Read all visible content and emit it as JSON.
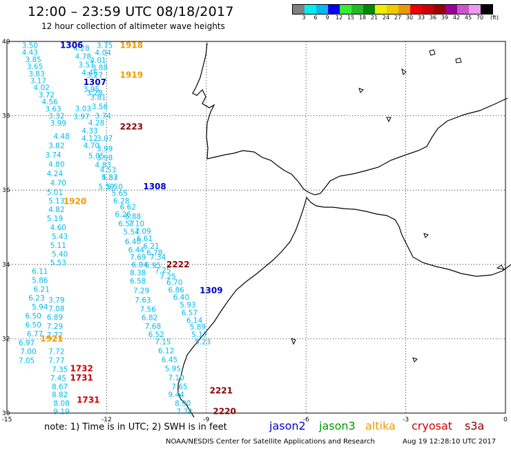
{
  "header": {
    "title": "12:00 – 23:59 UTC 08/18/2017",
    "subtitle": "12 hour collection of altimeter wave heights"
  },
  "colorbar": {
    "colors": [
      "#808080",
      "#00eeee",
      "#00bbee",
      "#0000ee",
      "#33ee33",
      "#22bb22",
      "#008800",
      "#eeee00",
      "#eecc00",
      "#ee9900",
      "#ee0000",
      "#cc0000",
      "#990000",
      "#990099",
      "#cc55cc",
      "#ee99ee",
      "#000000"
    ],
    "labels": [
      "3",
      "6",
      "9",
      "12",
      "15",
      "18",
      "21",
      "24",
      "27",
      "30",
      "33",
      "36",
      "39",
      "42",
      "45",
      "70",
      "(ft)"
    ]
  },
  "map": {
    "lon_range": [
      -15,
      0
    ],
    "lat_range": [
      30,
      40
    ],
    "x_ticks": [
      {
        "value": -15,
        "label": "-15"
      },
      {
        "value": -12,
        "label": "-12"
      },
      {
        "value": -9,
        "label": "-9"
      },
      {
        "value": -6,
        "label": "-6"
      },
      {
        "value": -3,
        "label": "-3"
      },
      {
        "value": 0,
        "label": "0"
      }
    ],
    "y_ticks": [
      {
        "value": 40,
        "label": "40"
      },
      {
        "value": 38,
        "label": "38"
      },
      {
        "value": 36,
        "label": "36"
      },
      {
        "value": 34,
        "label": "34"
      },
      {
        "value": 32,
        "label": "32"
      },
      {
        "value": 30,
        "label": "30"
      }
    ],
    "grid": "dotted",
    "coast_color": "#000000"
  },
  "satellites": [
    {
      "name": "jason2",
      "color": "#0000cc"
    },
    {
      "name": "jason3",
      "color": "#009900"
    },
    {
      "name": "altika",
      "color": "#ee9900"
    },
    {
      "name": "cryosat",
      "color": "#cc0000"
    },
    {
      "name": "s3a",
      "color": "#880000"
    }
  ],
  "chart_data": {
    "type": "scatter",
    "title": "12:00 – 23:59 UTC 08/18/2017",
    "subtitle": "12 hour collection of altimeter wave heights",
    "xlabel": "",
    "ylabel": "",
    "xlim": [
      -15,
      0
    ],
    "ylim": [
      30,
      40
    ],
    "units": "ft",
    "value_color": "#00bbee",
    "pass_labels": [
      {
        "text": "1306",
        "sat": "jason2",
        "lon": -13.4,
        "lat": 39.9
      },
      {
        "text": "1918",
        "sat": "altika",
        "lon": -11.6,
        "lat": 39.9
      },
      {
        "text": "1919",
        "sat": "altika",
        "lon": -11.6,
        "lat": 39.1
      },
      {
        "text": "1307",
        "sat": "jason2",
        "lon": -12.7,
        "lat": 38.9
      },
      {
        "text": "2223",
        "sat": "s3a",
        "lon": -11.6,
        "lat": 37.7
      },
      {
        "text": "1308",
        "sat": "jason2",
        "lon": -10.9,
        "lat": 36.1
      },
      {
        "text": "1920",
        "sat": "altika",
        "lon": -13.3,
        "lat": 35.7
      },
      {
        "text": "2222",
        "sat": "s3a",
        "lon": -10.2,
        "lat": 34.0
      },
      {
        "text": "1309",
        "sat": "jason2",
        "lon": -9.2,
        "lat": 33.3
      },
      {
        "text": "1921",
        "sat": "altika",
        "lon": -14.0,
        "lat": 32.0
      },
      {
        "text": "1732",
        "sat": "cryosat",
        "lon": -13.1,
        "lat": 31.2
      },
      {
        "text": "1731",
        "sat": "cryosat",
        "lon": -13.1,
        "lat": 30.95
      },
      {
        "text": "2221",
        "sat": "s3a",
        "lon": -8.9,
        "lat": 30.6
      },
      {
        "text": "1731",
        "sat": "cryosat",
        "lon": -12.9,
        "lat": 30.35
      },
      {
        "text": "2220",
        "sat": "s3a",
        "lon": -8.8,
        "lat": 30.05
      }
    ],
    "values": [
      {
        "text": "3.50",
        "lon": -14.55,
        "lat": 39.9
      },
      {
        "text": "4.43",
        "lon": -14.55,
        "lat": 39.71
      },
      {
        "text": "3.85",
        "lon": -14.45,
        "lat": 39.52
      },
      {
        "text": "3.65",
        "lon": -14.4,
        "lat": 39.33
      },
      {
        "text": "3.83",
        "lon": -14.35,
        "lat": 39.14
      },
      {
        "text": "3.17",
        "lon": -14.3,
        "lat": 38.95
      },
      {
        "text": "4.02",
        "lon": -14.2,
        "lat": 38.76
      },
      {
        "text": "3.72",
        "lon": -14.05,
        "lat": 38.57
      },
      {
        "text": "4.56",
        "lon": -13.95,
        "lat": 38.38
      },
      {
        "text": "3.63",
        "lon": -13.85,
        "lat": 38.19
      },
      {
        "text": "3.32",
        "lon": -13.75,
        "lat": 38.0
      },
      {
        "text": "3.99",
        "lon": -13.7,
        "lat": 37.81
      },
      {
        "text": "4.48",
        "lon": -13.6,
        "lat": 37.45
      },
      {
        "text": "3.82",
        "lon": -13.75,
        "lat": 37.2
      },
      {
        "text": "3.74",
        "lon": -13.85,
        "lat": 36.95
      },
      {
        "text": "4.80",
        "lon": -13.75,
        "lat": 36.7
      },
      {
        "text": "4.24",
        "lon": -13.8,
        "lat": 36.45
      },
      {
        "text": "4.70",
        "lon": -13.7,
        "lat": 36.2
      },
      {
        "text": "5.01",
        "lon": -13.8,
        "lat": 35.95
      },
      {
        "text": "5.13",
        "lon": -13.75,
        "lat": 35.72
      },
      {
        "text": "4.82",
        "lon": -13.75,
        "lat": 35.48
      },
      {
        "text": "5.19",
        "lon": -13.8,
        "lat": 35.24
      },
      {
        "text": "4.60",
        "lon": -13.7,
        "lat": 35.0
      },
      {
        "text": "5.43",
        "lon": -13.65,
        "lat": 34.76
      },
      {
        "text": "5.11",
        "lon": -13.7,
        "lat": 34.52
      },
      {
        "text": "5.40",
        "lon": -13.65,
        "lat": 34.28
      },
      {
        "text": "5.53",
        "lon": -13.7,
        "lat": 34.05
      },
      {
        "text": "6.11",
        "lon": -14.25,
        "lat": 33.82
      },
      {
        "text": "5.86",
        "lon": -14.25,
        "lat": 33.58
      },
      {
        "text": "6.21",
        "lon": -14.2,
        "lat": 33.34
      },
      {
        "text": "6.23",
        "lon": -14.35,
        "lat": 33.1
      },
      {
        "text": "5.94",
        "lon": -14.25,
        "lat": 32.86
      },
      {
        "text": "6.50",
        "lon": -14.45,
        "lat": 32.62
      },
      {
        "text": "6.50",
        "lon": -14.45,
        "lat": 32.38
      },
      {
        "text": "6.77",
        "lon": -14.4,
        "lat": 32.14
      },
      {
        "text": "6.97",
        "lon": -14.65,
        "lat": 31.9
      },
      {
        "text": "7.00",
        "lon": -14.6,
        "lat": 31.66
      },
      {
        "text": "7.05",
        "lon": -14.65,
        "lat": 31.42
      },
      {
        "text": "3.79",
        "lon": -13.75,
        "lat": 33.05
      },
      {
        "text": "7.08",
        "lon": -13.75,
        "lat": 32.82
      },
      {
        "text": "6.89",
        "lon": -13.8,
        "lat": 32.58
      },
      {
        "text": "7.29",
        "lon": -13.8,
        "lat": 32.34
      },
      {
        "text": "7.72",
        "lon": -13.8,
        "lat": 32.1
      },
      {
        "text": "7.72",
        "lon": -13.75,
        "lat": 31.66
      },
      {
        "text": "7.77",
        "lon": -13.75,
        "lat": 31.42
      },
      {
        "text": "7.35",
        "lon": -13.65,
        "lat": 31.18
      },
      {
        "text": "7.45",
        "lon": -13.7,
        "lat": 30.95
      },
      {
        "text": "8.67",
        "lon": -13.65,
        "lat": 30.72
      },
      {
        "text": "8.82",
        "lon": -13.65,
        "lat": 30.5
      },
      {
        "text": "8.08",
        "lon": -13.6,
        "lat": 30.27
      },
      {
        "text": "9.19",
        "lon": -13.6,
        "lat": 30.05
      },
      {
        "text": "4.28",
        "lon": -13.0,
        "lat": 39.82
      },
      {
        "text": "4.78",
        "lon": -12.95,
        "lat": 39.6
      },
      {
        "text": "3.51",
        "lon": -12.85,
        "lat": 39.38
      },
      {
        "text": "4.46",
        "lon": -12.75,
        "lat": 39.16
      },
      {
        "text": "3.28",
        "lon": -12.6,
        "lat": 38.62
      },
      {
        "text": "3.03",
        "lon": -12.95,
        "lat": 38.2
      },
      {
        "text": "3.97",
        "lon": -13.0,
        "lat": 37.98
      },
      {
        "text": "4.28",
        "lon": -12.55,
        "lat": 37.82
      },
      {
        "text": "4.33",
        "lon": -12.75,
        "lat": 37.6
      },
      {
        "text": "4.12",
        "lon": -12.75,
        "lat": 37.4
      },
      {
        "text": "4.70",
        "lon": -12.7,
        "lat": 37.2
      },
      {
        "text": "5.05",
        "lon": -12.55,
        "lat": 36.92
      },
      {
        "text": "4.83",
        "lon": -12.35,
        "lat": 36.68
      },
      {
        "text": "4.87",
        "lon": -12.15,
        "lat": 36.35
      },
      {
        "text": "5.50",
        "lon": -12.0,
        "lat": 36.1
      },
      {
        "text": "3.75",
        "lon": -12.3,
        "lat": 39.9
      },
      {
        "text": "4.04",
        "lon": -12.35,
        "lat": 39.7
      },
      {
        "text": "4.01",
        "lon": -12.5,
        "lat": 39.5
      },
      {
        "text": "3.88",
        "lon": -12.45,
        "lat": 39.3
      },
      {
        "text": "3.27",
        "lon": -12.6,
        "lat": 39.1
      },
      {
        "text": "3.95",
        "lon": -12.7,
        "lat": 38.72
      },
      {
        "text": "3.81",
        "lon": -12.5,
        "lat": 38.5
      },
      {
        "text": "3.56",
        "lon": -12.45,
        "lat": 38.25
      },
      {
        "text": "3.74",
        "lon": -12.35,
        "lat": 38.0
      },
      {
        "text": "3.07",
        "lon": -12.3,
        "lat": 37.4
      },
      {
        "text": "3.99",
        "lon": -12.3,
        "lat": 37.12
      },
      {
        "text": "3.98",
        "lon": -12.3,
        "lat": 36.88
      },
      {
        "text": "4.53",
        "lon": -12.2,
        "lat": 36.55
      },
      {
        "text": "5.33",
        "lon": -12.15,
        "lat": 36.35
      },
      {
        "text": "5.59",
        "lon": -12.25,
        "lat": 36.1
      },
      {
        "text": "5.65",
        "lon": -11.85,
        "lat": 35.92
      },
      {
        "text": "6.28",
        "lon": -11.8,
        "lat": 35.72
      },
      {
        "text": "6.62",
        "lon": -11.6,
        "lat": 35.55
      },
      {
        "text": "6.26",
        "lon": -11.75,
        "lat": 35.35
      },
      {
        "text": "6.88",
        "lon": -11.45,
        "lat": 35.3
      },
      {
        "text": "6.57",
        "lon": -11.65,
        "lat": 35.1
      },
      {
        "text": "7.10",
        "lon": -11.35,
        "lat": 35.1
      },
      {
        "text": "7.09",
        "lon": -11.15,
        "lat": 34.9
      },
      {
        "text": "5.54",
        "lon": -11.5,
        "lat": 34.88
      },
      {
        "text": "6.61",
        "lon": -11.1,
        "lat": 34.7
      },
      {
        "text": "6.40",
        "lon": -11.45,
        "lat": 34.62
      },
      {
        "text": "6.21",
        "lon": -10.9,
        "lat": 34.5
      },
      {
        "text": "6.44",
        "lon": -11.35,
        "lat": 34.4
      },
      {
        "text": "6.78",
        "lon": -10.8,
        "lat": 34.32
      },
      {
        "text": "7.69",
        "lon": -11.3,
        "lat": 34.2
      },
      {
        "text": "7.34",
        "lon": -10.7,
        "lat": 34.2
      },
      {
        "text": "6.84",
        "lon": -11.25,
        "lat": 34.0
      },
      {
        "text": "6.95",
        "lon": -10.85,
        "lat": 33.98
      },
      {
        "text": "7.25",
        "lon": -10.55,
        "lat": 33.85
      },
      {
        "text": "8.38",
        "lon": -11.3,
        "lat": 33.78
      },
      {
        "text": "7.25",
        "lon": -10.4,
        "lat": 33.68
      },
      {
        "text": "6.58",
        "lon": -11.3,
        "lat": 33.56
      },
      {
        "text": "6.70",
        "lon": -10.2,
        "lat": 33.52
      },
      {
        "text": "7.29",
        "lon": -11.2,
        "lat": 33.3
      },
      {
        "text": "6.86",
        "lon": -10.15,
        "lat": 33.32
      },
      {
        "text": "6.40",
        "lon": -10.0,
        "lat": 33.12
      },
      {
        "text": "7.63",
        "lon": -11.15,
        "lat": 33.05
      },
      {
        "text": "5.93",
        "lon": -9.8,
        "lat": 32.92
      },
      {
        "text": "7.56",
        "lon": -11.0,
        "lat": 32.8
      },
      {
        "text": "6.57",
        "lon": -9.75,
        "lat": 32.7
      },
      {
        "text": "6.82",
        "lon": -10.95,
        "lat": 32.57
      },
      {
        "text": "6.14",
        "lon": -9.6,
        "lat": 32.5
      },
      {
        "text": "7.68",
        "lon": -10.85,
        "lat": 32.34
      },
      {
        "text": "5.89",
        "lon": -9.5,
        "lat": 32.32
      },
      {
        "text": "6.52",
        "lon": -10.75,
        "lat": 32.12
      },
      {
        "text": "5.17",
        "lon": -9.45,
        "lat": 32.12
      },
      {
        "text": "7.15",
        "lon": -10.55,
        "lat": 31.92
      },
      {
        "text": "5.23",
        "lon": -9.35,
        "lat": 31.92
      },
      {
        "text": "6.12",
        "lon": -10.45,
        "lat": 31.68
      },
      {
        "text": "6.45",
        "lon": -10.35,
        "lat": 31.44
      },
      {
        "text": "5.95",
        "lon": -10.25,
        "lat": 31.2
      },
      {
        "text": "7.10",
        "lon": -10.15,
        "lat": 30.96
      },
      {
        "text": "7.65",
        "lon": -10.05,
        "lat": 30.72
      },
      {
        "text": "9.44",
        "lon": -10.15,
        "lat": 30.5
      },
      {
        "text": "8.90",
        "lon": -9.95,
        "lat": 30.27
      },
      {
        "text": "7.74",
        "lon": -9.9,
        "lat": 30.05
      }
    ]
  },
  "footer": {
    "note": "note: 1) Time is in UTC; 2) SWH is in feet",
    "credit": "NOAA/NESDIS Center for Satellite Applications and Research",
    "timestamp": "Aug 19 12:28:10 UTC 2017"
  }
}
